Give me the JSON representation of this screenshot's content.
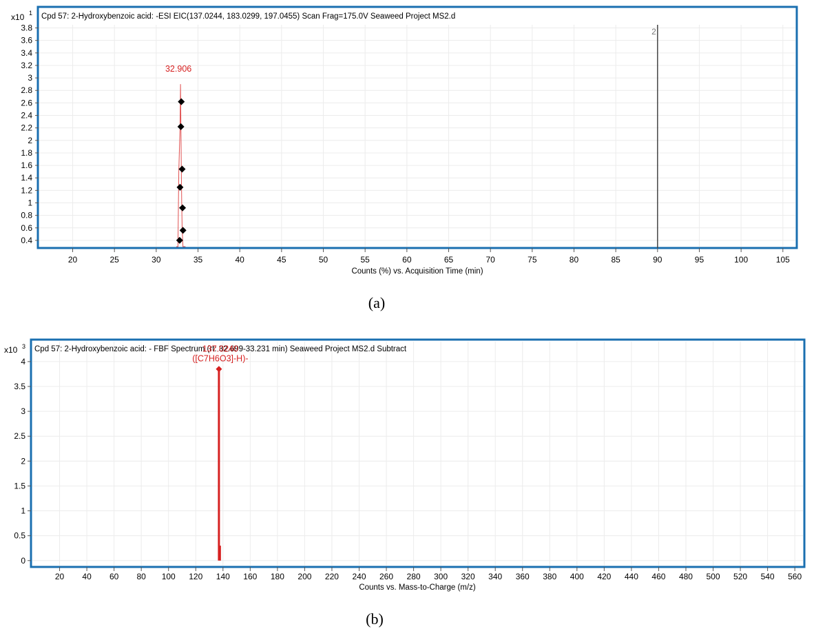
{
  "chart_data": [
    {
      "type": "line",
      "panel_caption": "(a)",
      "multiplier": "x10",
      "multiplier_exp": "1",
      "title": "Cpd 57: 2-Hydroxybenzoic acid: -ESI EIC(137.0244, 183.0299, 197.0455) Scan Frag=175.0V Seaweed Project MS2.d",
      "xlabel": "Counts (%) vs. Acquisition Time (min)",
      "xlim": [
        16,
        106.5
      ],
      "ylim": [
        0.3,
        3.85
      ],
      "x_ticks": [
        20,
        25,
        30,
        35,
        40,
        45,
        50,
        55,
        60,
        65,
        70,
        75,
        80,
        85,
        90,
        95,
        100,
        105
      ],
      "y_ticks": [
        0.4,
        0.6,
        0.8,
        1,
        1.2,
        1.4,
        1.6,
        1.8,
        2,
        2.2,
        2.4,
        2.6,
        2.8,
        3,
        3.2,
        3.4,
        3.6,
        3.8
      ],
      "peak_label": "32.906",
      "peak_x": 32.906,
      "peak_y": 2.9,
      "trace": {
        "color": "#e05050",
        "x": [
          32.4,
          32.6,
          32.7,
          32.85,
          32.906,
          32.95,
          33.0,
          33.05,
          33.1,
          33.2,
          33.3,
          33.4,
          33.5
        ],
        "y": [
          0.3,
          0.3,
          1.5,
          2.2,
          2.9,
          2.3,
          1.6,
          1.0,
          0.6,
          0.3,
          0.3,
          0.3,
          0.3
        ]
      },
      "markers": {
        "color": "#000000",
        "x": [
          33.0,
          32.95,
          33.1,
          32.85,
          33.15,
          33.2,
          32.8
        ],
        "y": [
          2.62,
          2.22,
          1.54,
          1.25,
          0.92,
          0.56,
          0.4
        ]
      },
      "annotation_line": {
        "x": 90,
        "label": "2"
      },
      "axis_color": "#1a6fb0"
    },
    {
      "type": "bar",
      "panel_caption": "(b)",
      "multiplier": "x10",
      "multiplier_exp": "3",
      "title": "Cpd 57: 2-Hydroxybenzoic acid: - FBF Spectrum (rt: 32.699-33.231 min) Seaweed Project MS2.d  Subtract",
      "xlabel": "Counts vs. Mass-to-Charge (m/z)",
      "xlim": [
        0,
        566
      ],
      "ylim": [
        -0.1,
        4.4
      ],
      "x_ticks": [
        20,
        40,
        60,
        80,
        100,
        120,
        140,
        160,
        180,
        200,
        220,
        240,
        260,
        280,
        300,
        320,
        340,
        360,
        380,
        400,
        420,
        440,
        460,
        480,
        500,
        520,
        540,
        560
      ],
      "y_ticks": [
        0,
        0.5,
        1,
        1.5,
        2,
        2.5,
        3,
        3.5,
        4
      ],
      "peaks": [
        {
          "mz": 137.024,
          "intensity": 3.85,
          "marker": true
        },
        {
          "mz": 138.0,
          "intensity": 0.3,
          "marker": false
        }
      ],
      "peak_label_line1": "137.0240",
      "peak_label_line2": "([C7H6O3]-H)-",
      "peak_color": "#d62020",
      "axis_color": "#1a6fb0"
    }
  ]
}
